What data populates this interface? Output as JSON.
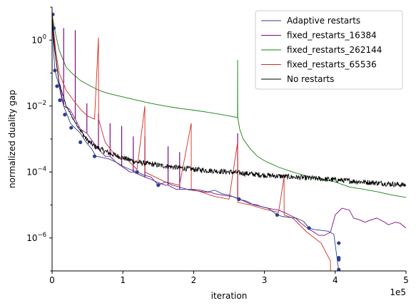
{
  "chart_data": {
    "type": "line",
    "title": "",
    "xlabel": "iteration",
    "ylabel": "normalized duality gap",
    "x_offset_text": "1e5",
    "xlim": [
      0,
      500000
    ],
    "ylim": [
      1e-07,
      10
    ],
    "yscale": "log",
    "grid": false,
    "legend_position": "top-right",
    "x_ticks": [
      {
        "value": 0,
        "label": "0"
      },
      {
        "value": 100000,
        "label": "1"
      },
      {
        "value": 200000,
        "label": "2"
      },
      {
        "value": 300000,
        "label": "3"
      },
      {
        "value": 400000,
        "label": "4"
      },
      {
        "value": 500000,
        "label": "5"
      }
    ],
    "y_ticks": [
      {
        "value": 1,
        "base": "10",
        "exp": "0"
      },
      {
        "value": 0.01,
        "base": "10",
        "exp": "−2"
      },
      {
        "value": 0.0001,
        "base": "10",
        "exp": "−4"
      },
      {
        "value": 1e-06,
        "base": "10",
        "exp": "−6"
      }
    ],
    "series": [
      {
        "name": "Adaptive restarts",
        "color": "#2e3f8f",
        "markers_at_restarts": true,
        "x": [
          0,
          2000,
          4000,
          6000,
          10000,
          14000,
          18000,
          22000,
          26000,
          32000,
          40000,
          48000,
          56000,
          62000,
          70000,
          80000,
          90000,
          100000,
          110000,
          120000,
          130000,
          140000,
          150000,
          160000,
          170000,
          180000,
          190000,
          200000,
          210000,
          220000,
          230000,
          240000,
          250000,
          264000,
          275000,
          285000,
          295000,
          305000,
          318000,
          325000,
          335000,
          345000,
          355000,
          363000,
          370000,
          380000,
          390000,
          398000,
          405000
        ],
        "y": [
          6,
          0.5,
          0.12,
          0.08,
          0.04,
          0.015,
          0.008,
          0.005,
          0.003,
          0.0022,
          0.0015,
          0.0008,
          0.0005,
          0.0003,
          0.00028,
          0.00025,
          0.0002,
          0.00015,
          0.00012,
          0.0001,
          8e-05,
          7e-05,
          4e-05,
          5e-05,
          4e-05,
          3.5e-05,
          3e-05,
          3e-05,
          2.8e-05,
          2.5e-05,
          2.8e-05,
          2.2e-05,
          2e-05,
          1.5e-05,
          1.3e-05,
          1e-05,
          9e-06,
          8e-06,
          5e-06,
          4.5e-06,
          4.2e-06,
          4e-06,
          3.2e-06,
          2e-06,
          1.8e-06,
          1.7e-06,
          1.6e-06,
          1.3e-06,
          1e-07
        ],
        "restart_points": [
          [
            1000,
            6
          ],
          [
            2500,
            2.3
          ],
          [
            4000,
            0.12
          ],
          [
            7000,
            0.04
          ],
          [
            11000,
            0.015
          ],
          [
            18000,
            0.0055
          ],
          [
            27000,
            0.0022
          ],
          [
            40000,
            0.0008
          ],
          [
            60000,
            0.0003
          ],
          [
            120000,
            0.0001
          ],
          [
            150000,
            4e-05
          ],
          [
            264000,
            1.5e-05
          ],
          [
            318000,
            5e-06
          ],
          [
            363000,
            2e-06
          ],
          [
            405000,
            7e-07
          ],
          [
            405000,
            2.5e-07
          ],
          [
            405000,
            2.2e-07
          ],
          [
            405000,
            1.1e-07
          ]
        ]
      },
      {
        "name": "fixed_restarts_16384",
        "color": "#7b0a86",
        "x": [
          0,
          5000,
          10000,
          16384,
          25000,
          32768,
          40000,
          49152,
          60000,
          65536,
          75000,
          81920,
          90000,
          98304,
          110000,
          114688,
          125000,
          131072,
          140000,
          147456,
          160000,
          163840,
          175000,
          180224,
          190000,
          196608,
          210000,
          212992,
          225000,
          229376,
          240000,
          245760,
          255000,
          262144,
          275000,
          278528,
          290000,
          294912,
          305000,
          311296,
          320000,
          327680,
          335000,
          344064,
          350000,
          360448,
          370000,
          376832,
          385000,
          393216,
          400000,
          409600,
          420000,
          425984,
          435000,
          442368,
          450000,
          458752,
          470000,
          475136,
          485000,
          491520,
          500000
        ],
        "y": [
          6,
          0.3,
          0.05,
          0.01,
          0.008,
          0.004,
          0.002,
          0.0015,
          0.0007,
          0.0005,
          0.0003,
          0.0003,
          0.0002,
          0.00015,
          0.0001,
          0.0001,
          8e-05,
          7e-05,
          6e-05,
          5e-05,
          4e-05,
          4e-05,
          3e-05,
          3e-05,
          3e-05,
          2.8e-05,
          2.6e-05,
          2.5e-05,
          2.4e-05,
          2.2e-05,
          2e-05,
          1.9e-05,
          1.8e-05,
          1.6e-05,
          1.2e-05,
          1.1e-05,
          1e-05,
          9e-06,
          8e-06,
          7.5e-06,
          7e-06,
          6e-06,
          5e-06,
          4e-06,
          3e-06,
          2e-06,
          1.5e-06,
          1.2e-06,
          1.2e-06,
          1.5e-06,
          5e-06,
          8e-06,
          7e-06,
          4e-06,
          3.5e-06,
          3e-06,
          3.5e-06,
          4e-06,
          3e-06,
          2.5e-06,
          3e-06,
          2.8e-06,
          2e-06
        ],
        "spikes": [
          [
            16384,
            2.3
          ],
          [
            32768,
            2.0
          ],
          [
            49152,
            0.012
          ],
          [
            65536,
            0.006
          ],
          [
            81920,
            0.003
          ],
          [
            98304,
            0.0025
          ],
          [
            114688,
            0.0012
          ],
          [
            131072,
            0.0012
          ],
          [
            163840,
            0.0006
          ],
          [
            180224,
            0.0004
          ],
          [
            262144,
            0.0015
          ]
        ]
      },
      {
        "name": "fixed_restarts_262144",
        "color": "#118011",
        "x": [
          0,
          5000,
          10000,
          20000,
          30000,
          40000,
          50000,
          60000,
          70000,
          80000,
          100000,
          120000,
          140000,
          160000,
          180000,
          200000,
          220000,
          240000,
          262000,
          262144,
          262300,
          265000,
          270000,
          280000,
          290000,
          300000,
          320000,
          340000,
          360000,
          380000,
          400000,
          420000,
          440000,
          460000,
          480000,
          500000
        ],
        "y": [
          6,
          1.5,
          0.5,
          0.15,
          0.09,
          0.06,
          0.045,
          0.035,
          0.028,
          0.024,
          0.019,
          0.015,
          0.012,
          0.01,
          0.0085,
          0.0075,
          0.0065,
          0.0055,
          0.0045,
          0.25,
          0.0045,
          0.002,
          0.001,
          0.0005,
          0.0003,
          0.00022,
          0.00014,
          0.0001,
          7.5e-05,
          6e-05,
          5e-05,
          3.5e-05,
          3e-05,
          2.5e-05,
          2e-05,
          1.7e-05
        ]
      },
      {
        "name": "fixed_restarts_65536",
        "color": "#d52b1e",
        "x": [
          0,
          5000,
          10000,
          20000,
          30000,
          40000,
          50000,
          60000,
          65536,
          65700,
          75000,
          90000,
          105000,
          120000,
          131072,
          131200,
          140000,
          160000,
          180000,
          196608,
          196700,
          210000,
          230000,
          250000,
          262144,
          262300,
          280000,
          300000,
          320000,
          327680,
          327800,
          340000,
          360000,
          380000,
          393216,
          393300
        ],
        "y": [
          6,
          0.5,
          0.1,
          0.03,
          0.015,
          0.008,
          0.005,
          0.004,
          1.2,
          0.004,
          0.0008,
          0.0003,
          0.00025,
          0.00012,
          0.01,
          0.0001,
          8e-05,
          5e-05,
          4e-05,
          0.003,
          3e-05,
          2.5e-05,
          1.8e-05,
          1.5e-05,
          0.0008,
          1.2e-05,
          1e-05,
          7.5e-06,
          6e-06,
          7e-05,
          5e-06,
          4e-06,
          1.5e-06,
          7e-07,
          2e-07,
          1e-07
        ]
      },
      {
        "name": "No restarts",
        "color": "#000000",
        "noisy": true,
        "x": [
          0,
          2000,
          5000,
          10000,
          20000,
          30000,
          40000,
          50000,
          60000,
          80000,
          100000,
          120000,
          150000,
          200000,
          250000,
          300000,
          350000,
          400000,
          450000,
          500000
        ],
        "y": [
          6,
          1.0,
          0.3,
          0.05,
          0.01,
          0.004,
          0.0018,
          0.0009,
          0.0006,
          0.00038,
          0.00027,
          0.0002,
          0.00016,
          0.00012,
          0.0001,
          8e-05,
          6.8e-05,
          5.8e-05,
          4.8e-05,
          4e-05
        ]
      }
    ]
  }
}
